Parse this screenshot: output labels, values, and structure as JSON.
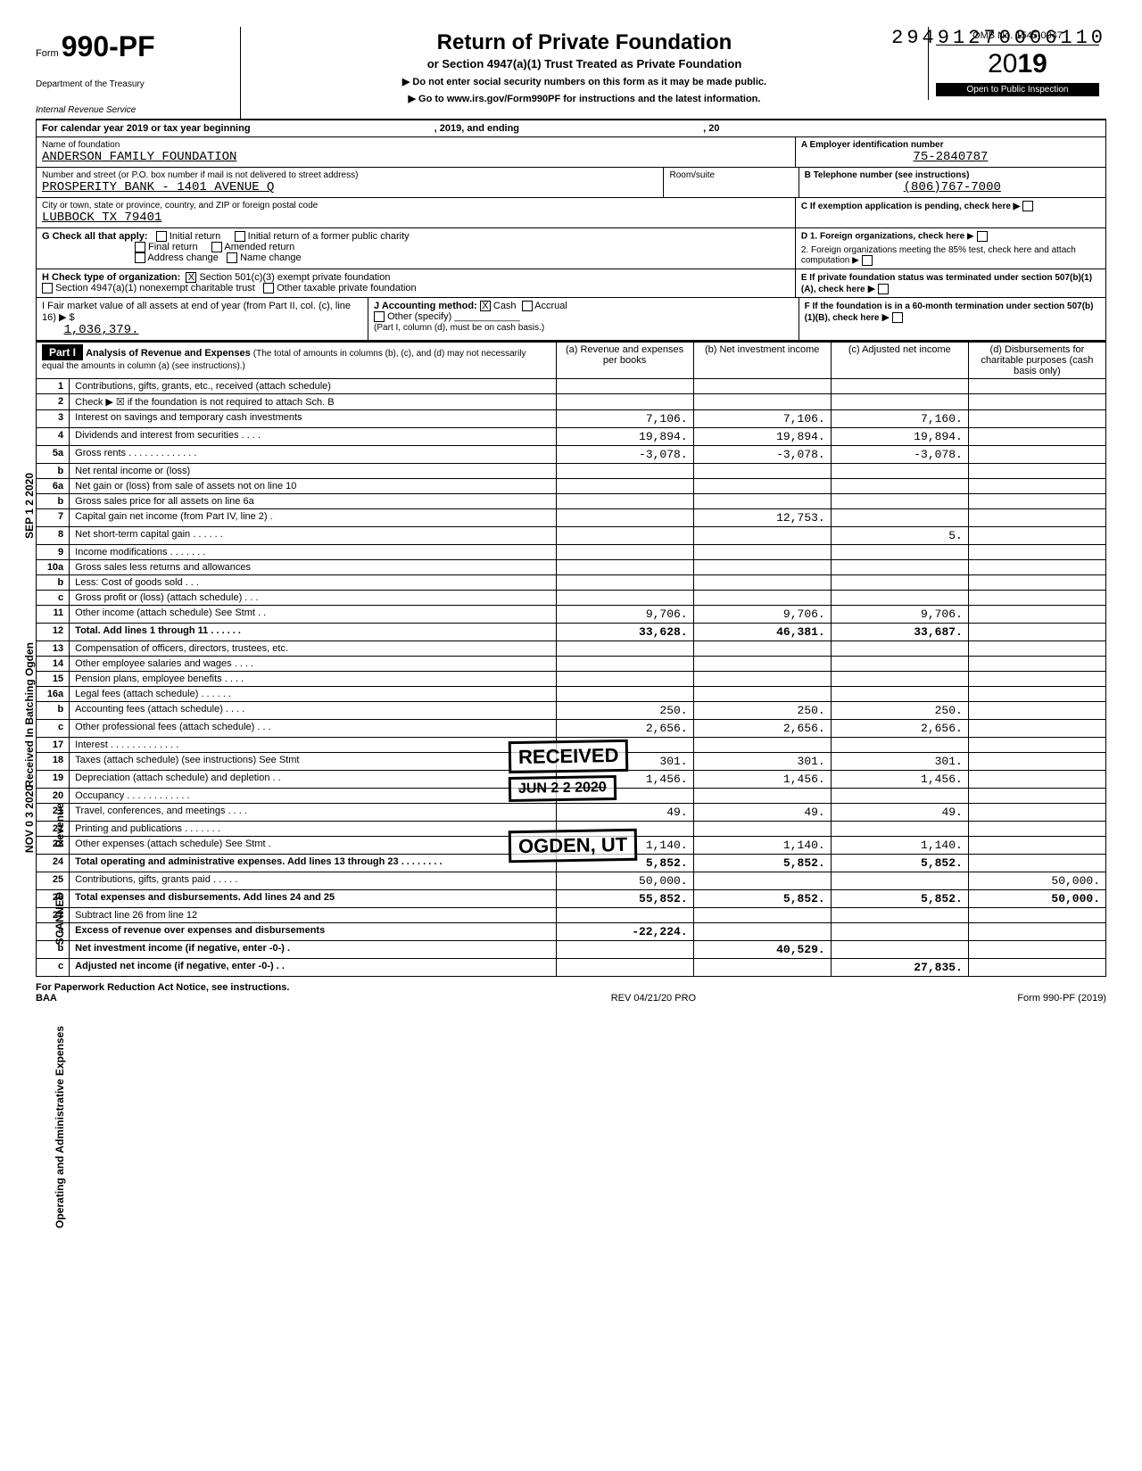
{
  "dln": "29491270006110",
  "form": {
    "form_prefix": "Form",
    "form_number": "990-PF",
    "title": "Return of Private Foundation",
    "subtitle": "or Section 4947(a)(1) Trust Treated as Private Foundation",
    "note1": "▶ Do not enter social security numbers on this form as it may be made public.",
    "note2": "▶ Go to www.irs.gov/Form990PF for instructions and the latest information.",
    "dept1": "Department of the Treasury",
    "dept2": "Internal Revenue Service",
    "omb": "OMB No. 1545-0047",
    "year_prefix": "20",
    "year_bold": "19",
    "open": "Open to Public Inspection"
  },
  "period": {
    "label_pre": "For calendar year 2019 or tax year beginning",
    "label_mid": ", 2019, and ending",
    "label_end": ", 20"
  },
  "header": {
    "name_label": "Name of foundation",
    "name": "ANDERSON FAMILY FOUNDATION",
    "ein_label": "A  Employer identification number",
    "ein": "75-2840787",
    "addr_label": "Number and street (or P.O. box number if mail is not delivered to street address)",
    "addr": "PROSPERITY BANK - 1401 AVENUE Q",
    "room_label": "Room/suite",
    "tel_label": "B  Telephone number (see instructions)",
    "tel": "(806)767-7000",
    "city_label": "City or town, state or province, country, and ZIP or foreign postal code",
    "city": "LUBBOCK TX 79401",
    "c_label": "C  If exemption application is pending, check here ▶"
  },
  "g": {
    "label": "G  Check all that apply:",
    "opt1": "Initial return",
    "opt2": "Final return",
    "opt3": "Address change",
    "opt4": "Initial return of a former public charity",
    "opt5": "Amended return",
    "opt6": "Name change"
  },
  "d": {
    "d1": "D  1. Foreign organizations, check here",
    "d2": "2. Foreign organizations meeting the 85% test, check here and attach computation"
  },
  "h": {
    "label": "H  Check type of organization:",
    "opt1": "Section 501(c)(3) exempt private foundation",
    "opt2": "Section 4947(a)(1) nonexempt charitable trust",
    "opt3": "Other taxable private foundation",
    "checked": "X"
  },
  "e": {
    "label": "E  If private foundation status was terminated under section 507(b)(1)(A), check here"
  },
  "i": {
    "label": "I  Fair market value of all assets at end of year (from Part II, col. (c), line 16) ▶ $",
    "value": "1,036,379."
  },
  "j": {
    "label": "J  Accounting method:",
    "cash": "Cash",
    "accrual": "Accrual",
    "other": "Other (specify)",
    "note": "(Part I, column (d), must be on cash basis.)",
    "checked": "X"
  },
  "f": {
    "label": "F  If the foundation is in a 60-month termination under section 507(b)(1)(B), check here"
  },
  "part1": {
    "label": "Part I",
    "title": "Analysis of Revenue and Expenses",
    "note": "(The total of amounts in columns (b), (c), and (d) may not necessarily equal the amounts in column (a) (see instructions).)",
    "col_a": "(a) Revenue and expenses per books",
    "col_b": "(b) Net investment income",
    "col_c": "(c) Adjusted net income",
    "col_d": "(d) Disbursements for charitable purposes (cash basis only)"
  },
  "rows": [
    {
      "n": "1",
      "d": "Contributions, gifts, grants, etc., received (attach schedule)",
      "a": "",
      "b": "",
      "c": "",
      "dd": ""
    },
    {
      "n": "2",
      "d": "Check ▶ ☒ if the foundation is not required to attach Sch. B",
      "a": "",
      "b": "",
      "c": "",
      "dd": ""
    },
    {
      "n": "3",
      "d": "Interest on savings and temporary cash investments",
      "a": "7,106.",
      "b": "7,106.",
      "c": "7,160.",
      "dd": ""
    },
    {
      "n": "4",
      "d": "Dividends and interest from securities . . . .",
      "a": "19,894.",
      "b": "19,894.",
      "c": "19,894.",
      "dd": ""
    },
    {
      "n": "5a",
      "d": "Gross rents . . . . . . . . . . . . .",
      "a": "-3,078.",
      "b": "-3,078.",
      "c": "-3,078.",
      "dd": ""
    },
    {
      "n": "b",
      "d": "Net rental income or (loss)",
      "a": "",
      "b": "",
      "c": "",
      "dd": ""
    },
    {
      "n": "6a",
      "d": "Net gain or (loss) from sale of assets not on line 10",
      "a": "",
      "b": "",
      "c": "",
      "dd": ""
    },
    {
      "n": "b",
      "d": "Gross sales price for all assets on line 6a",
      "a": "",
      "b": "",
      "c": "",
      "dd": ""
    },
    {
      "n": "7",
      "d": "Capital gain net income (from Part IV, line 2) .",
      "a": "",
      "b": "12,753.",
      "c": "",
      "dd": ""
    },
    {
      "n": "8",
      "d": "Net short-term capital gain . . . . . .",
      "a": "",
      "b": "",
      "c": "5.",
      "dd": ""
    },
    {
      "n": "9",
      "d": "Income modifications . . . . . . .",
      "a": "",
      "b": "",
      "c": "",
      "dd": ""
    },
    {
      "n": "10a",
      "d": "Gross sales less returns and allowances",
      "a": "",
      "b": "",
      "c": "",
      "dd": ""
    },
    {
      "n": "b",
      "d": "Less: Cost of goods sold . . .",
      "a": "",
      "b": "",
      "c": "",
      "dd": ""
    },
    {
      "n": "c",
      "d": "Gross profit or (loss) (attach schedule) . . .",
      "a": "",
      "b": "",
      "c": "",
      "dd": ""
    },
    {
      "n": "11",
      "d": "Other income (attach schedule) See Stmt . .",
      "a": "9,706.",
      "b": "9,706.",
      "c": "9,706.",
      "dd": ""
    },
    {
      "n": "12",
      "d": "Total. Add lines 1 through 11 . . . . . .",
      "a": "33,628.",
      "b": "46,381.",
      "c": "33,687.",
      "dd": "",
      "bold": true
    },
    {
      "n": "13",
      "d": "Compensation of officers, directors, trustees, etc.",
      "a": "",
      "b": "",
      "c": "",
      "dd": ""
    },
    {
      "n": "14",
      "d": "Other employee salaries and wages . . . .",
      "a": "",
      "b": "",
      "c": "",
      "dd": ""
    },
    {
      "n": "15",
      "d": "Pension plans, employee benefits . . . .",
      "a": "",
      "b": "",
      "c": "",
      "dd": ""
    },
    {
      "n": "16a",
      "d": "Legal fees (attach schedule) . . . . . .",
      "a": "",
      "b": "",
      "c": "",
      "dd": ""
    },
    {
      "n": "b",
      "d": "Accounting fees (attach schedule) . . . .",
      "a": "250.",
      "b": "250.",
      "c": "250.",
      "dd": ""
    },
    {
      "n": "c",
      "d": "Other professional fees (attach schedule) . . .",
      "a": "2,656.",
      "b": "2,656.",
      "c": "2,656.",
      "dd": ""
    },
    {
      "n": "17",
      "d": "Interest . . . . . . . . . . . . .",
      "a": "",
      "b": "",
      "c": "",
      "dd": ""
    },
    {
      "n": "18",
      "d": "Taxes (attach schedule) (see instructions) See Stmt",
      "a": "301.",
      "b": "301.",
      "c": "301.",
      "dd": ""
    },
    {
      "n": "19",
      "d": "Depreciation (attach schedule) and depletion . .",
      "a": "1,456.",
      "b": "1,456.",
      "c": "1,456.",
      "dd": ""
    },
    {
      "n": "20",
      "d": "Occupancy . . . . . . . . . . . .",
      "a": "",
      "b": "",
      "c": "",
      "dd": ""
    },
    {
      "n": "21",
      "d": "Travel, conferences, and meetings . . . .",
      "a": "49.",
      "b": "49.",
      "c": "49.",
      "dd": ""
    },
    {
      "n": "22",
      "d": "Printing and publications . . . . . . .",
      "a": "",
      "b": "",
      "c": "",
      "dd": ""
    },
    {
      "n": "23",
      "d": "Other expenses (attach schedule) See Stmt .",
      "a": "1,140.",
      "b": "1,140.",
      "c": "1,140.",
      "dd": ""
    },
    {
      "n": "24",
      "d": "Total operating and administrative expenses. Add lines 13 through 23 . . . . . . . .",
      "a": "5,852.",
      "b": "5,852.",
      "c": "5,852.",
      "dd": "",
      "bold": true
    },
    {
      "n": "25",
      "d": "Contributions, gifts, grants paid . . . . .",
      "a": "50,000.",
      "b": "",
      "c": "",
      "dd": "50,000."
    },
    {
      "n": "26",
      "d": "Total expenses and disbursements. Add lines 24 and 25",
      "a": "55,852.",
      "b": "5,852.",
      "c": "5,852.",
      "dd": "50,000.",
      "bold": true
    },
    {
      "n": "27",
      "d": "Subtract line 26 from line 12",
      "a": "",
      "b": "",
      "c": "",
      "dd": ""
    },
    {
      "n": "a",
      "d": "Excess of revenue over expenses and disbursements",
      "a": "-22,224.",
      "b": "",
      "c": "",
      "dd": "",
      "bold": true
    },
    {
      "n": "b",
      "d": "Net investment income (if negative, enter -0-) .",
      "a": "",
      "b": "40,529.",
      "c": "",
      "dd": "",
      "bold": true
    },
    {
      "n": "c",
      "d": "Adjusted net income (if negative, enter -0-) . .",
      "a": "",
      "b": "",
      "c": "27,835.",
      "dd": "",
      "bold": true
    }
  ],
  "stamps": {
    "received": "RECEIVED",
    "jun": "JUN 2 2 2020",
    "ogden": "OGDEN, UT",
    "sep": "SEP 1 2 2020",
    "nov": "NOV 0 3 2020",
    "side_rev": "Revenue",
    "side_exp": "Operating and Administrative Expenses",
    "scanned": "SCANNED",
    "rcvd_ogden": "Received In Batching Ogden"
  },
  "footer": {
    "left": "For Paperwork Reduction Act Notice, see instructions.",
    "baa": "BAA",
    "mid": "REV 04/21/20 PRO",
    "right": "Form 990-PF (2019)"
  }
}
